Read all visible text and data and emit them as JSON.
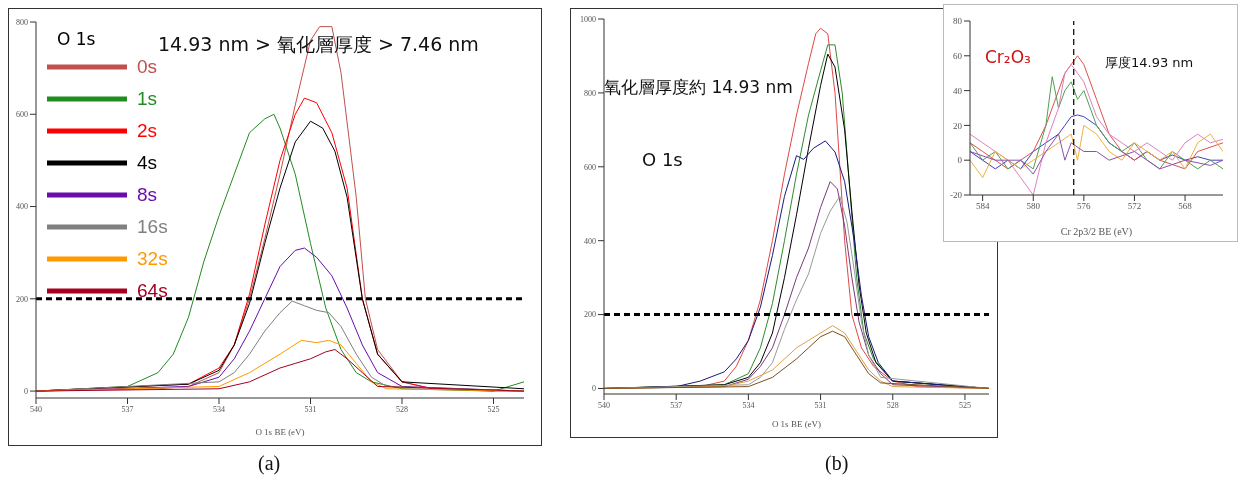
{
  "chart_data": [
    {
      "type": "line",
      "xlabel": "O 1s BE (eV)",
      "legend_title": "O 1s",
      "legend": "top left",
      "xlim": [
        540,
        524
      ],
      "xticks": [
        540,
        537,
        534,
        531,
        528,
        525
      ],
      "ylim": [
        -15,
        800
      ],
      "yticks": [
        0,
        200,
        400,
        600,
        800
      ],
      "annotations": [
        "14.93 nm > 氧化層厚度 > 7.46 nm",
        "(a)"
      ],
      "ref_lines": [
        {
          "axis": "y",
          "value": 200,
          "color": "#000000",
          "line_style": "dashed"
        }
      ],
      "series": [
        {
          "name": "0s",
          "color": "#c0504d",
          "x": [
            540,
            536,
            535,
            534,
            533.5,
            533,
            532.5,
            532,
            531.5,
            531,
            530.7,
            530.3,
            530,
            529.5,
            529.2,
            528.8,
            528,
            527,
            525,
            524
          ],
          "values": [
            0,
            5,
            10,
            40,
            100,
            200,
            330,
            470,
            620,
            760,
            790,
            790,
            690,
            420,
            200,
            90,
            20,
            5,
            0,
            0
          ]
        },
        {
          "name": "1s",
          "color": "#228b22",
          "x": [
            540,
            537,
            536,
            535.5,
            535,
            534.5,
            534,
            533.5,
            533,
            532.5,
            532.2,
            532,
            531.5,
            531,
            530.5,
            530,
            529.5,
            529,
            528,
            525,
            524
          ],
          "values": [
            0,
            10,
            40,
            80,
            160,
            280,
            380,
            470,
            560,
            590,
            600,
            570,
            470,
            320,
            180,
            90,
            40,
            20,
            5,
            0,
            20
          ]
        },
        {
          "name": "2s",
          "color": "#ff0000",
          "x": [
            540,
            535,
            534,
            533.5,
            533,
            532.5,
            532,
            531.5,
            531.2,
            530.8,
            530.3,
            529.8,
            529.3,
            528.8,
            528,
            527,
            524
          ],
          "values": [
            0,
            15,
            50,
            100,
            210,
            360,
            500,
            600,
            635,
            625,
            560,
            440,
            200,
            80,
            20,
            5,
            0
          ]
        },
        {
          "name": "4s",
          "color": "#000000",
          "x": [
            540,
            535,
            534,
            533.5,
            533,
            532.5,
            532,
            531.5,
            531,
            530.6,
            530.2,
            529.8,
            529.3,
            528.8,
            528,
            524
          ],
          "values": [
            0,
            15,
            45,
            100,
            190,
            320,
            440,
            540,
            585,
            570,
            520,
            420,
            200,
            80,
            20,
            5
          ]
        },
        {
          "name": "8s",
          "color": "#6a0dad",
          "x": [
            540,
            535,
            534,
            533.5,
            533,
            532.5,
            532,
            531.5,
            531.2,
            530.8,
            530.3,
            529.8,
            529.3,
            528.8,
            528,
            524
          ],
          "values": [
            0,
            10,
            30,
            70,
            130,
            200,
            270,
            305,
            310,
            290,
            250,
            180,
            100,
            40,
            10,
            0
          ]
        },
        {
          "name": "16s",
          "color": "#808080",
          "x": [
            540,
            534,
            533.5,
            533,
            532.5,
            532,
            531.6,
            531.2,
            530.8,
            530.4,
            530,
            529.5,
            529,
            528.5,
            524
          ],
          "values": [
            0,
            20,
            40,
            80,
            130,
            170,
            195,
            185,
            175,
            170,
            140,
            80,
            30,
            10,
            0
          ]
        },
        {
          "name": "32s",
          "color": "#ff9900",
          "x": [
            540,
            534,
            533,
            532,
            531.3,
            530.8,
            530.4,
            530,
            529.5,
            529,
            528.5,
            524
          ],
          "values": [
            0,
            10,
            40,
            80,
            110,
            105,
            110,
            100,
            60,
            20,
            5,
            0
          ]
        },
        {
          "name": "64s",
          "color": "#a50021",
          "x": [
            540,
            534,
            533,
            532,
            531.5,
            531,
            530.5,
            530.2,
            529.8,
            529.3,
            528.8,
            524
          ],
          "values": [
            0,
            5,
            20,
            50,
            60,
            70,
            85,
            90,
            70,
            40,
            10,
            0
          ]
        }
      ]
    },
    {
      "type": "line",
      "xlabel": "O 1s BE (eV)",
      "xlim": [
        540,
        524
      ],
      "xticks": [
        540,
        537,
        534,
        531,
        528,
        525
      ],
      "ylim": [
        -15,
        1000
      ],
      "yticks": [
        0,
        200,
        400,
        600,
        800,
        1000
      ],
      "annotations": [
        "氧化層厚度約 14.93 nm",
        "O 1s",
        "(b)"
      ],
      "ref_lines": [
        {
          "axis": "y",
          "value": 200,
          "color": "#000000",
          "line_style": "dashed"
        }
      ],
      "series": [
        {
          "color": "#e04848",
          "x": [
            540,
            536,
            535,
            534.5,
            534,
            533.5,
            533,
            532.5,
            532,
            531.5,
            531.2,
            531,
            530.7,
            530.4,
            530,
            529.7,
            529.3,
            528.8,
            528,
            527,
            524
          ],
          "values": [
            0,
            5,
            20,
            60,
            130,
            240,
            400,
            580,
            740,
            880,
            960,
            975,
            960,
            800,
            400,
            200,
            110,
            60,
            20,
            5,
            0
          ]
        },
        {
          "color": "#2e8b2e",
          "x": [
            540,
            535,
            534,
            533.5,
            533,
            532.5,
            532,
            531.5,
            531,
            530.7,
            530.4,
            530.1,
            529.8,
            529.5,
            529.2,
            528.8,
            528,
            524
          ],
          "values": [
            0,
            10,
            40,
            110,
            230,
            400,
            580,
            740,
            860,
            930,
            930,
            800,
            550,
            300,
            150,
            80,
            20,
            0
          ]
        },
        {
          "color": "#000000",
          "x": [
            540,
            535,
            534,
            533.5,
            533,
            532.5,
            532,
            531.5,
            531,
            530.7,
            530.4,
            530,
            529.7,
            529.4,
            529.1,
            528.7,
            528,
            524
          ],
          "values": [
            0,
            10,
            30,
            70,
            150,
            300,
            470,
            650,
            820,
            905,
            870,
            700,
            480,
            280,
            150,
            70,
            20,
            0
          ]
        },
        {
          "color": "#1a1a80",
          "x": [
            540,
            537,
            536,
            535,
            534.5,
            534,
            533.5,
            533,
            532.5,
            532,
            531.7,
            531.3,
            530.8,
            530.4,
            530,
            529.6,
            529.3,
            529,
            528.6,
            528,
            524
          ],
          "values": [
            0,
            5,
            20,
            45,
            80,
            130,
            220,
            360,
            520,
            630,
            620,
            650,
            670,
            640,
            560,
            400,
            250,
            140,
            70,
            20,
            0
          ]
        },
        {
          "color": "#7a3a7a",
          "x": [
            540,
            535,
            534,
            533.5,
            533,
            532.5,
            532,
            531.5,
            531,
            530.6,
            530.3,
            530,
            529.7,
            529.4,
            529,
            528.5,
            528,
            524
          ],
          "values": [
            0,
            5,
            25,
            60,
            110,
            200,
            300,
            380,
            490,
            560,
            540,
            440,
            300,
            180,
            90,
            40,
            10,
            0
          ]
        },
        {
          "color": "#999999",
          "x": [
            540,
            534,
            533.5,
            533,
            532.5,
            532,
            531.5,
            531,
            530.6,
            530.2,
            529.9,
            529.6,
            529.3,
            529,
            528.5,
            524
          ],
          "values": [
            0,
            10,
            30,
            70,
            160,
            240,
            310,
            420,
            480,
            520,
            450,
            320,
            180,
            90,
            30,
            0
          ]
        },
        {
          "color": "#e0a040",
          "x": [
            540,
            535,
            534,
            533,
            532,
            531.5,
            531,
            530.5,
            530,
            529.5,
            529,
            528.5,
            528,
            524
          ],
          "values": [
            0,
            5,
            20,
            50,
            110,
            130,
            150,
            170,
            150,
            100,
            50,
            20,
            5,
            0
          ]
        },
        {
          "color": "#7a5020",
          "x": [
            540,
            534,
            533,
            532,
            531.5,
            531,
            530.5,
            530,
            529.5,
            529,
            528.5,
            524
          ],
          "values": [
            0,
            5,
            30,
            80,
            110,
            140,
            155,
            140,
            90,
            40,
            15,
            0
          ]
        }
      ]
    },
    {
      "type": "line",
      "xlabel": "Cr 2p3/2 BE (eV)",
      "xlim": [
        585,
        565
      ],
      "xticks": [
        584,
        580,
        576,
        572,
        568
      ],
      "ylim": [
        -20,
        80
      ],
      "yticks": [
        -20,
        0,
        20,
        40,
        60,
        80
      ],
      "annotations": [
        "Cr₂O₃",
        "厚度14.93 nm"
      ],
      "ref_lines": [
        {
          "axis": "x",
          "value": 576.8,
          "color": "#000000",
          "line_style": "dashed"
        }
      ],
      "series": [
        {
          "color": "#4040c0",
          "x": [
            585,
            584,
            583,
            582,
            581,
            580,
            579,
            578,
            577.5,
            577,
            576.5,
            576,
            575,
            574,
            573,
            572,
            571,
            570,
            569,
            568,
            567,
            566,
            565
          ],
          "values": [
            5,
            0,
            -5,
            0,
            -5,
            5,
            10,
            15,
            20,
            25,
            26,
            25,
            20,
            10,
            5,
            0,
            5,
            0,
            3,
            0,
            2,
            0,
            0
          ]
        },
        {
          "color": "#e05050",
          "x": [
            585,
            584,
            583,
            582,
            581,
            580,
            579,
            578,
            577.5,
            577,
            576.5,
            576,
            575.5,
            575,
            574,
            573,
            572,
            571,
            570,
            568,
            567,
            565
          ],
          "values": [
            10,
            5,
            0,
            -5,
            0,
            5,
            20,
            40,
            50,
            55,
            60,
            55,
            45,
            35,
            15,
            5,
            0,
            5,
            0,
            -5,
            5,
            10
          ]
        },
        {
          "color": "#50a050",
          "x": [
            585,
            584,
            583,
            582,
            581,
            580,
            579,
            578.5,
            578,
            577.5,
            577,
            576.5,
            576,
            575,
            574,
            573,
            572,
            571,
            570,
            569,
            568,
            567,
            566,
            565
          ],
          "values": [
            10,
            0,
            5,
            -5,
            0,
            -5,
            20,
            48,
            30,
            40,
            45,
            35,
            40,
            20,
            10,
            5,
            10,
            0,
            -5,
            5,
            0,
            -5,
            0,
            -5
          ]
        },
        {
          "color": "#e080c0",
          "x": [
            585,
            584,
            583,
            582,
            581,
            580,
            579,
            578,
            577.5,
            577,
            576.5,
            576,
            575,
            574,
            573,
            572,
            571,
            570,
            569,
            568,
            567,
            566,
            565
          ],
          "values": [
            15,
            10,
            5,
            0,
            -10,
            -20,
            10,
            30,
            50,
            55,
            50,
            45,
            25,
            15,
            10,
            5,
            10,
            5,
            0,
            10,
            15,
            10,
            12
          ]
        },
        {
          "color": "#f0b040",
          "x": [
            585,
            584,
            583,
            582,
            581,
            580,
            579,
            578,
            577,
            576.5,
            576,
            575,
            574,
            573,
            572,
            571,
            570,
            569,
            568,
            567,
            566,
            565
          ],
          "values": [
            0,
            -10,
            5,
            0,
            -5,
            0,
            5,
            10,
            15,
            0,
            20,
            15,
            5,
            0,
            10,
            5,
            0,
            5,
            -5,
            10,
            15,
            5
          ]
        },
        {
          "color": "#9050b0",
          "x": [
            585,
            583,
            581,
            580,
            579,
            578,
            577.5,
            577,
            576,
            575,
            574,
            572,
            570,
            568,
            566,
            565
          ],
          "values": [
            5,
            0,
            0,
            -8,
            5,
            15,
            0,
            10,
            5,
            5,
            0,
            5,
            -5,
            0,
            -3,
            0
          ]
        }
      ]
    }
  ]
}
